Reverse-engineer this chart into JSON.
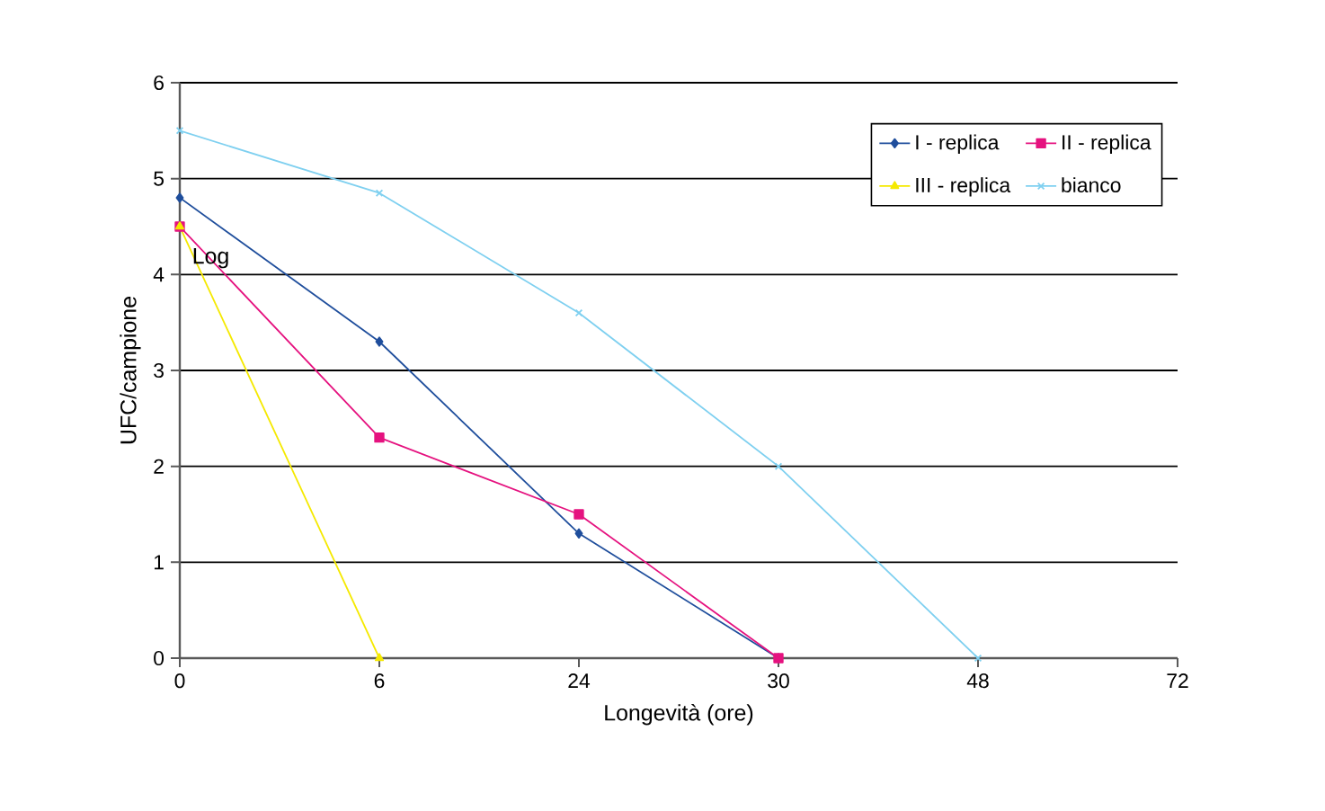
{
  "chart_data": {
    "type": "line",
    "xlabel": "Longevità (ore)",
    "ylabel": "UFC/campione",
    "categories": [
      "0",
      "6",
      "24",
      "30",
      "48",
      "72"
    ],
    "series": [
      {
        "name": "I - replica",
        "color": "#1f4e9c",
        "marker": "diamond",
        "values": [
          4.8,
          3.3,
          1.3,
          0,
          null,
          null
        ]
      },
      {
        "name": "II - replica",
        "color": "#e5127f",
        "marker": "square",
        "values": [
          4.5,
          2.3,
          1.5,
          0,
          null,
          null
        ]
      },
      {
        "name": "III - replica",
        "color": "#f5e900",
        "marker": "triangle",
        "values": [
          4.5,
          0,
          null,
          null,
          null,
          null
        ]
      },
      {
        "name": "bianco",
        "color": "#7fd0f0",
        "marker": "cross",
        "values": [
          5.5,
          4.85,
          3.6,
          2.0,
          0,
          null
        ]
      }
    ],
    "ylim": [
      0,
      6
    ],
    "yticks": [
      0,
      1,
      2,
      3,
      4,
      5,
      6
    ],
    "grid": "y",
    "legend": "top right",
    "annotations": [
      "Log"
    ]
  }
}
